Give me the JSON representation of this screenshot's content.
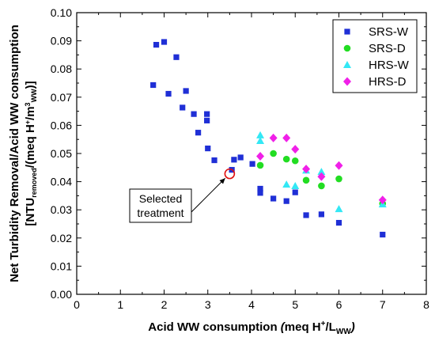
{
  "chart_data": {
    "type": "scatter",
    "title": "",
    "xlabel": {
      "main": "Acid WW consumption ",
      "italic_open": "(",
      "unit": "meq H",
      "sup": "+",
      "mid": "/L",
      "sub": "WW",
      "close": ")"
    },
    "ylabel": {
      "line1": "Net Turbidity Removal/Acid WW consumption",
      "line2_open": "[NTU",
      "line2_sub1": "removed",
      "line2_mid": "/(meq H",
      "line2_sup1": "+",
      "line2_mid2": "/m",
      "line2_sup2": "3",
      "line2_sub2": "WW",
      "line2_close": ")]"
    },
    "xlim": [
      0,
      8
    ],
    "ylim": [
      0,
      0.1
    ],
    "x_ticks": [
      "0",
      "1",
      "2",
      "3",
      "4",
      "5",
      "6",
      "7",
      "8"
    ],
    "y_ticks": [
      "0.00",
      "0.01",
      "0.02",
      "0.03",
      "0.04",
      "0.05",
      "0.06",
      "0.07",
      "0.08",
      "0.09",
      "0.10"
    ],
    "grid": false,
    "legend_position": "top-right",
    "series": [
      {
        "name": "SRS-W",
        "marker": "square",
        "color": "#1F2FD6",
        "points": [
          [
            1.75,
            0.0743
          ],
          [
            1.82,
            0.0886
          ],
          [
            2.0,
            0.0896
          ],
          [
            2.1,
            0.0712
          ],
          [
            2.28,
            0.0842
          ],
          [
            2.42,
            0.0663
          ],
          [
            2.5,
            0.0722
          ],
          [
            2.68,
            0.064
          ],
          [
            2.78,
            0.0574
          ],
          [
            2.98,
            0.064
          ],
          [
            2.98,
            0.0617
          ],
          [
            3.0,
            0.0518
          ],
          [
            3.15,
            0.0476
          ],
          [
            3.55,
            0.0442
          ],
          [
            3.6,
            0.0478
          ],
          [
            3.75,
            0.0486
          ],
          [
            4.02,
            0.0463
          ],
          [
            4.2,
            0.0375
          ],
          [
            4.2,
            0.036
          ],
          [
            4.5,
            0.034
          ],
          [
            4.8,
            0.0331
          ],
          [
            5.0,
            0.0362
          ],
          [
            5.25,
            0.0281
          ],
          [
            5.6,
            0.0284
          ],
          [
            6.0,
            0.0254
          ],
          [
            7.0,
            0.0212
          ]
        ]
      },
      {
        "name": "SRS-D",
        "marker": "circle",
        "color": "#22DD22",
        "points": [
          [
            4.2,
            0.0458
          ],
          [
            4.5,
            0.05
          ],
          [
            4.8,
            0.048
          ],
          [
            5.0,
            0.0474
          ],
          [
            5.25,
            0.0405
          ],
          [
            5.6,
            0.0385
          ],
          [
            6.0,
            0.041
          ],
          [
            7.0,
            0.0322
          ]
        ]
      },
      {
        "name": "HRS-W",
        "marker": "triangle",
        "color": "#33E8F5",
        "points": [
          [
            4.2,
            0.0565
          ],
          [
            4.2,
            0.0545
          ],
          [
            4.8,
            0.039
          ],
          [
            5.0,
            0.0385
          ],
          [
            5.25,
            0.044
          ],
          [
            5.6,
            0.0435
          ],
          [
            6.0,
            0.0303
          ],
          [
            7.0,
            0.032
          ]
        ]
      },
      {
        "name": "HRS-D",
        "marker": "diamond",
        "color": "#F020E8",
        "points": [
          [
            4.2,
            0.049
          ],
          [
            4.5,
            0.0555
          ],
          [
            4.8,
            0.0555
          ],
          [
            5.0,
            0.0515
          ],
          [
            5.25,
            0.0445
          ],
          [
            5.6,
            0.0418
          ],
          [
            6.0,
            0.0457
          ],
          [
            7.0,
            0.0335
          ]
        ]
      }
    ],
    "annotation": {
      "lines": [
        "Selected",
        "treatment"
      ],
      "target": [
        3.5,
        0.0428
      ],
      "highlight_color": "#E01010"
    }
  }
}
